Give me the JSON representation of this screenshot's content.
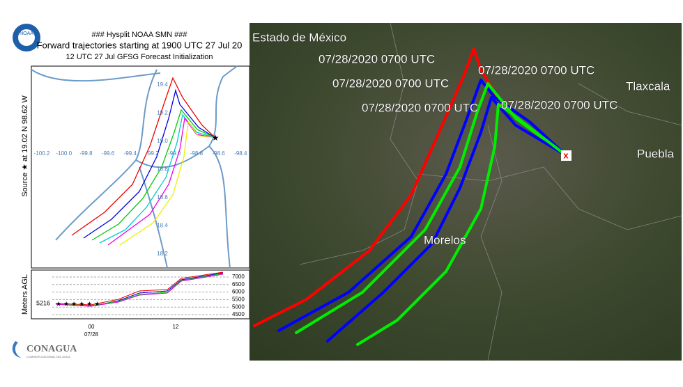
{
  "header": {
    "line1": "### Hysplit NOAA  SMN ###",
    "line2": "Forward trajectories starting at 1900 UTC 27 Jul 20",
    "line3": "12 UTC 27 Jul    GFSG  Forecast Initialization"
  },
  "noaa_logo": "NOAA",
  "plot": {
    "source_label": "Source ★  at   19.02 N   98.62 W",
    "lon_labels": [
      "-100.2",
      "-100.0",
      "-99.8",
      "-99.6",
      "-99.4",
      "-99.2",
      "-99.0",
      "-98.8",
      "-98.6",
      "-98.4"
    ],
    "lat_labels": [
      "19.4",
      "19.2",
      "19.0",
      "18.8",
      "18.6",
      "18.4",
      "18.2"
    ]
  },
  "height": {
    "axis_label": "Meters AGL",
    "source_height": "5216",
    "ticks": [
      "7000",
      "6500",
      "6000",
      "5500",
      "5000",
      "4500"
    ],
    "time_labels": [
      "00",
      "12"
    ],
    "date": "07/28"
  },
  "logo": {
    "name": "CONAGUA",
    "subtitle": "COMISIÓN NACIONAL DEL AGUA"
  },
  "map": {
    "labels": [
      "Estado de México",
      "Tlaxcala",
      "Puebla",
      "Morelos"
    ],
    "timestamps": [
      "07/28/2020 0700 UTC",
      "07/28/2020 0700 UTC",
      "07/28/2020 0700 UTC",
      "07/28/2020 0700 UTC",
      "07/28/2020 0700 UTC"
    ]
  }
}
